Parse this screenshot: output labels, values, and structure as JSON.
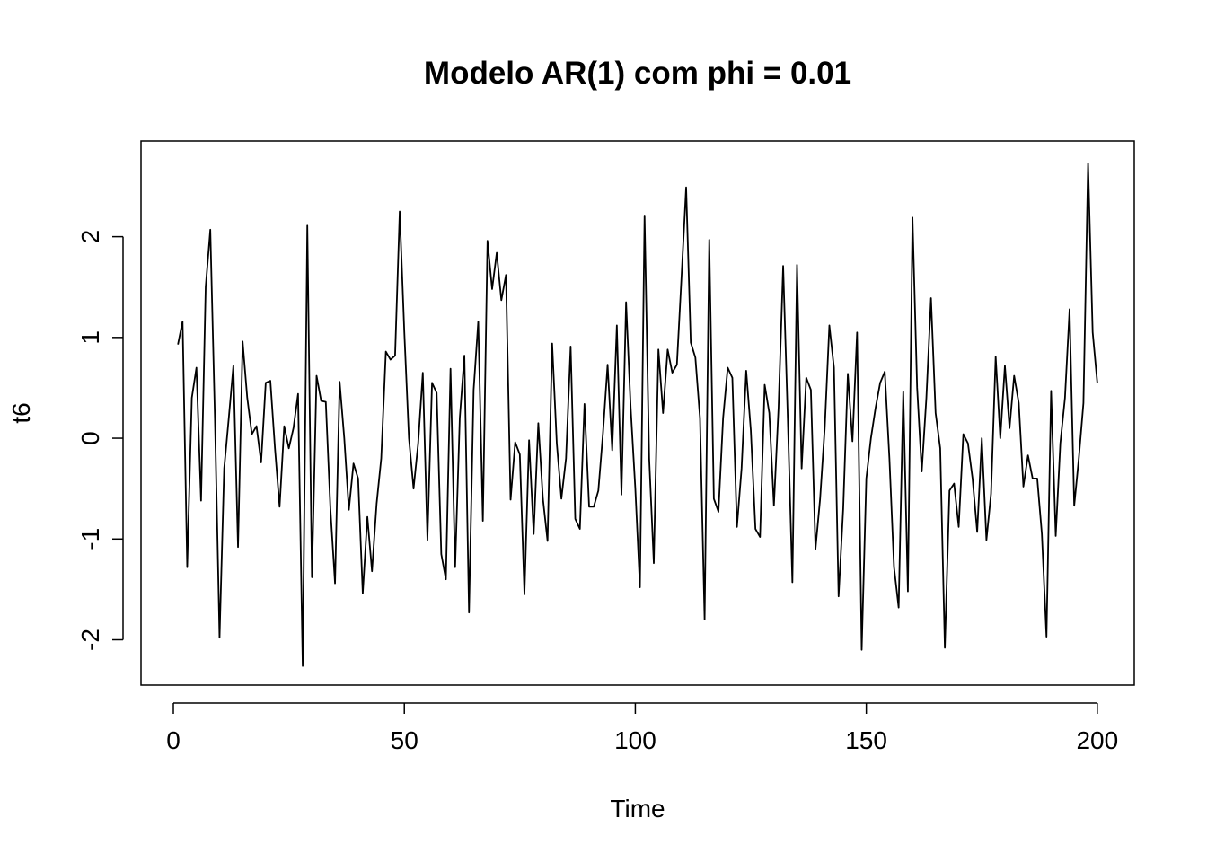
{
  "chart_data": {
    "type": "line",
    "title": "Modelo AR(1) com phi = 0.01",
    "xlabel": "Time",
    "ylabel": "t6",
    "xlim": [
      -7,
      208
    ],
    "ylim": [
      -2.45,
      2.95
    ],
    "xticks": [
      0,
      50,
      100,
      150,
      200
    ],
    "yticks": [
      -2,
      -1,
      0,
      1,
      2
    ],
    "grid": false,
    "series": [
      {
        "color": "#000000",
        "x": [
          1,
          2,
          3,
          4,
          5,
          6,
          7,
          8,
          9,
          10,
          11,
          12,
          13,
          14,
          15,
          16,
          17,
          18,
          19,
          20,
          21,
          22,
          23,
          24,
          25,
          26,
          27,
          28,
          29,
          30,
          31,
          32,
          33,
          34,
          35,
          36,
          37,
          38,
          39,
          40,
          41,
          42,
          43,
          44,
          45,
          46,
          47,
          48,
          49,
          50,
          51,
          52,
          53,
          54,
          55,
          56,
          57,
          58,
          59,
          60,
          61,
          62,
          63,
          64,
          65,
          66,
          67,
          68,
          69,
          70,
          71,
          72,
          73,
          74,
          75,
          76,
          77,
          78,
          79,
          80,
          81,
          82,
          83,
          84,
          85,
          86,
          87,
          88,
          89,
          90,
          91,
          92,
          93,
          94,
          95,
          96,
          97,
          98,
          99,
          100,
          101,
          102,
          103,
          104,
          105,
          106,
          107,
          108,
          109,
          110,
          111,
          112,
          113,
          114,
          115,
          116,
          117,
          118,
          119,
          120,
          121,
          122,
          123,
          124,
          125,
          126,
          127,
          128,
          129,
          130,
          131,
          132,
          133,
          134,
          135,
          136,
          137,
          138,
          139,
          140,
          141,
          142,
          143,
          144,
          145,
          146,
          147,
          148,
          149,
          150,
          151,
          152,
          153,
          154,
          155,
          156,
          157,
          158,
          159,
          160,
          161,
          162,
          163,
          164,
          165,
          166,
          167,
          168,
          169,
          170,
          171,
          172,
          173,
          174,
          175,
          176,
          177,
          178,
          179,
          180,
          181,
          182,
          183,
          184,
          185,
          186,
          187,
          188,
          189,
          190,
          191,
          192,
          193,
          194,
          195,
          196,
          197,
          198,
          199,
          200
        ],
        "y": [
          0.93,
          1.16,
          -1.28,
          0.4,
          0.7,
          -0.62,
          1.5,
          2.07,
          0.2,
          -1.98,
          -0.3,
          0.2,
          0.72,
          -1.08,
          0.96,
          0.4,
          0.04,
          0.12,
          -0.24,
          0.55,
          0.57,
          -0.1,
          -0.68,
          0.12,
          -0.1,
          0.1,
          0.44,
          -2.26,
          2.11,
          -1.38,
          0.62,
          0.37,
          0.36,
          -0.7,
          -1.44,
          0.56,
          0.0,
          -0.71,
          -0.25,
          -0.4,
          -1.54,
          -0.78,
          -1.32,
          -0.65,
          -0.2,
          0.86,
          0.78,
          0.82,
          2.25,
          1.05,
          0.0,
          -0.5,
          -0.05,
          0.65,
          -1.01,
          0.55,
          0.45,
          -1.15,
          -1.4,
          0.69,
          -1.28,
          0.2,
          0.82,
          -1.73,
          0.48,
          1.16,
          -0.82,
          1.96,
          1.48,
          1.84,
          1.37,
          1.62,
          -0.61,
          -0.04,
          -0.16,
          -1.55,
          -0.02,
          -0.95,
          0.15,
          -0.6,
          -1.02,
          0.94,
          -0.05,
          -0.6,
          -0.2,
          0.91,
          -0.8,
          -0.9,
          0.34,
          -0.68,
          -0.68,
          -0.52,
          0.05,
          0.73,
          -0.12,
          1.12,
          -0.56,
          1.35,
          0.3,
          -0.5,
          -1.48,
          2.21,
          -0.2,
          -1.24,
          0.88,
          0.25,
          0.88,
          0.65,
          0.73,
          1.6,
          2.49,
          0.95,
          0.8,
          0.2,
          -1.8,
          1.97,
          -0.6,
          -0.73,
          0.2,
          0.7,
          0.6,
          -0.88,
          -0.3,
          0.67,
          0.08,
          -0.9,
          -0.98,
          0.53,
          0.25,
          -0.67,
          0.3,
          1.71,
          0.2,
          -1.43,
          1.72,
          -0.3,
          0.6,
          0.48,
          -1.1,
          -0.6,
          0.1,
          1.12,
          0.7,
          -1.57,
          -0.7,
          0.64,
          -0.03,
          1.05,
          -2.1,
          -0.4,
          0.0,
          0.3,
          0.55,
          0.66,
          -0.2,
          -1.28,
          -1.68,
          0.46,
          -1.52,
          2.19,
          0.5,
          -0.33,
          0.4,
          1.39,
          0.25,
          -0.1,
          -2.08,
          -0.52,
          -0.45,
          -0.88,
          0.04,
          -0.05,
          -0.4,
          -0.93,
          0.0,
          -1.01,
          -0.55,
          0.81,
          0.0,
          0.72,
          0.1,
          0.62,
          0.35,
          -0.48,
          -0.17,
          -0.4,
          -0.4,
          -0.95,
          -1.97,
          0.47,
          -0.97,
          -0.05,
          0.4,
          1.28,
          -0.67,
          -0.2,
          0.35,
          2.73,
          1.05,
          0.55
        ]
      }
    ]
  }
}
